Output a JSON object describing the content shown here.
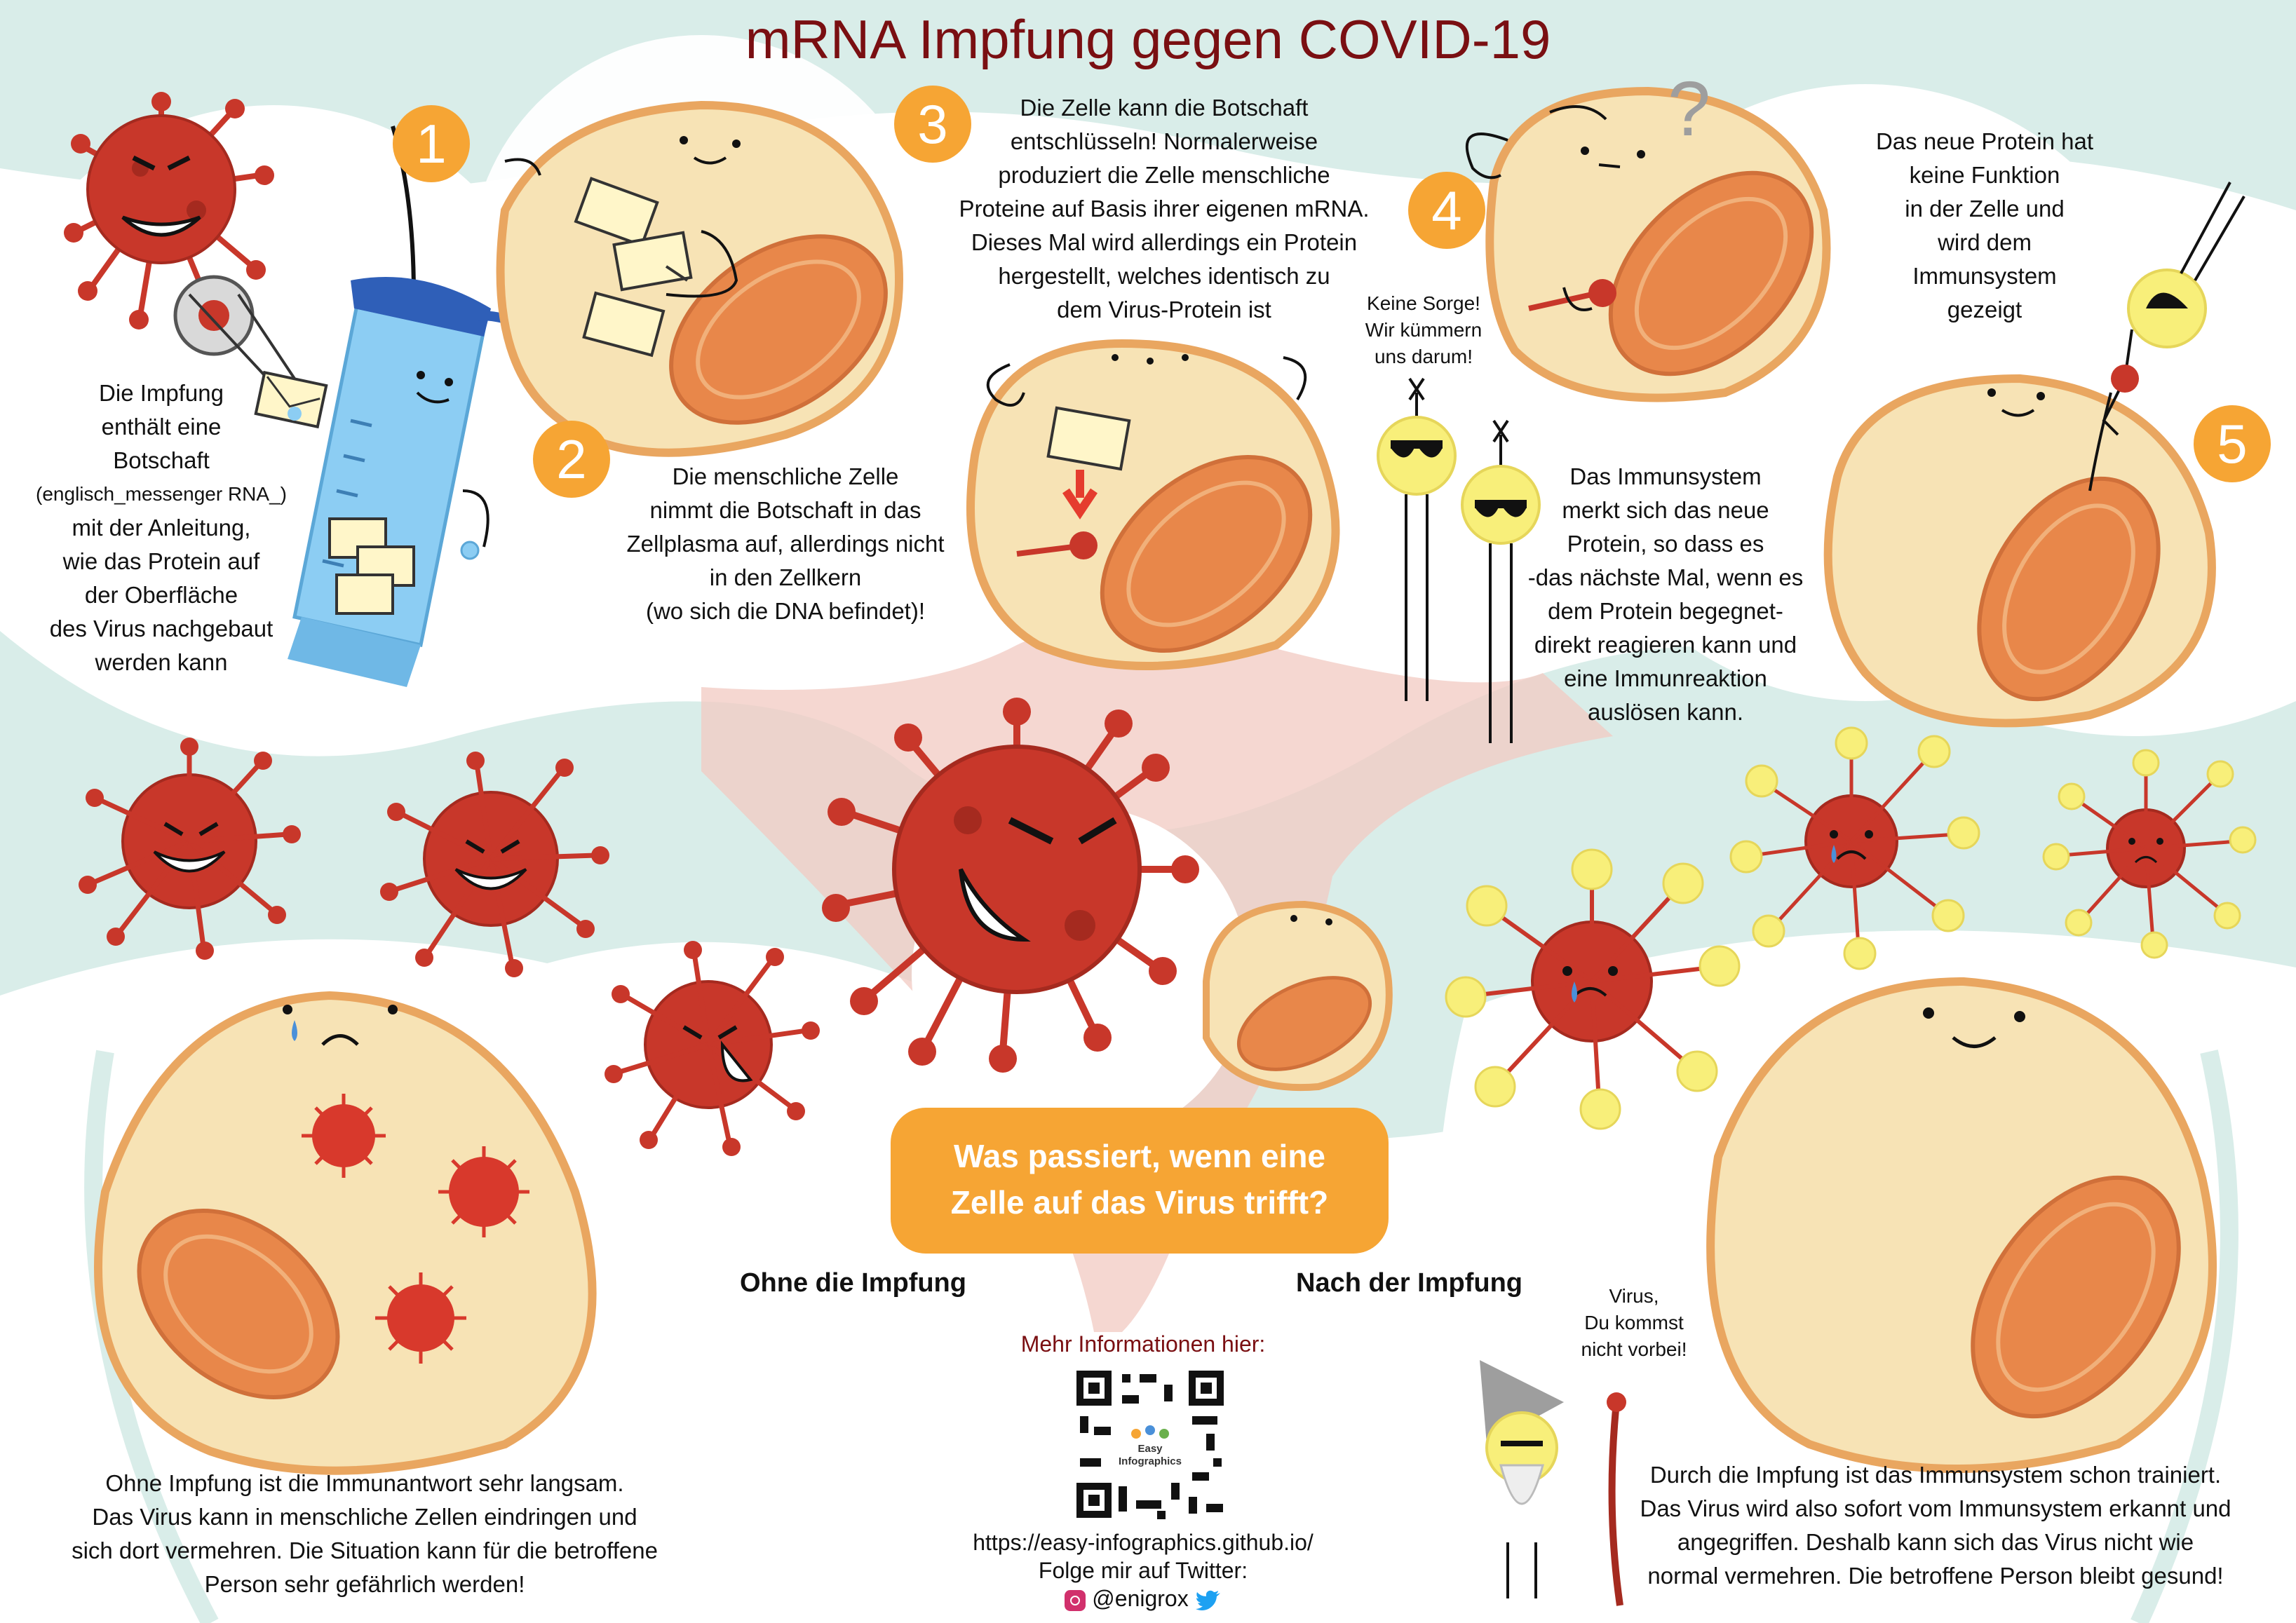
{
  "title": "mRNA Impfung gegen COVID-19",
  "steps": [
    {
      "number": "1",
      "text": [
        "Die Impfung",
        "enthält eine",
        "Botschaft",
        "(englisch_messenger RNA_)",
        "mit der Anleitung,",
        "wie das Protein auf",
        "der Oberfläche",
        "des Virus nachgebaut",
        "werden kann"
      ]
    },
    {
      "number": "2",
      "text": [
        "Die menschliche Zelle",
        "nimmt die Botschaft in das",
        "Zellplasma auf, allerdings nicht",
        "in den Zellkern",
        "(wo sich die DNA befindet)!"
      ]
    },
    {
      "number": "3",
      "text": [
        "Die Zelle kann die Botschaft",
        "entschlüsseln! Normalerweise",
        "produziert die Zelle menschliche",
        "Proteine auf Basis ihrer eigenen mRNA.",
        "Dieses Mal wird allerdings ein Protein",
        "hergestellt, welches identisch zu",
        "dem Virus-Protein ist"
      ]
    },
    {
      "number": "4",
      "text": [
        "Das Immunsystem",
        "merkt sich das neue",
        "Protein, so dass es",
        "-das nächste Mal, wenn es",
        "dem Protein begegnet-",
        "direkt reagieren kann und",
        "eine Immunreaktion",
        "auslösen kann."
      ]
    },
    {
      "number": "5",
      "text": [
        "Das neue Protein hat",
        "keine Funktion",
        "in der Zelle und",
        "wird dem",
        "Immunsystem",
        "gezeigt"
      ]
    }
  ],
  "speech": {
    "keine_sorge": [
      "Keine Sorge!",
      "Wir kümmern",
      "uns darum!"
    ],
    "virus_du_kommst": [
      "Virus,",
      "Du kommst",
      "nicht vorbei!"
    ]
  },
  "question_mark": "?",
  "question": [
    "Was passiert, wenn eine",
    "Zelle auf das Virus trifft?"
  ],
  "labels": {
    "without": "Ohne die Impfung",
    "with": "Nach der Impfung"
  },
  "outcomes": {
    "without": [
      "Ohne Impfung ist die Immunantwort sehr langsam.",
      "Das Virus kann in menschliche Zellen eindringen und",
      "sich dort vermehren. Die Situation kann für die betroffene",
      "Person sehr gefährlich werden!"
    ],
    "with": [
      "Durch die Impfung ist das Immunsystem schon trainiert.",
      "Das Virus wird also sofort vom Immunsystem erkannt und",
      "angegriffen. Deshalb kann sich das Virus nicht wie",
      "normal vermehren. Die betroffene Person bleibt gesund!"
    ]
  },
  "info": {
    "title": "Mehr Informationen hier:",
    "qr_label": [
      "Easy",
      "Infographics"
    ],
    "url": "https://easy-infographics.github.io/",
    "twitter_label": "Folge mir auf Twitter:",
    "handle": "@enigrox"
  },
  "colors": {
    "title": "#7a0f12",
    "accent_orange": "#f6a534",
    "virus_red": "#c8372a",
    "cell_fill": "#f7e3b5",
    "cell_border": "#e9a660",
    "mitochondria": "#e8874a",
    "immune_yellow": "#f8ef7a",
    "background_teal": "#d9ede9",
    "background_pink": "#f1c9c1",
    "syringe_blue": "#8ccdf3",
    "cap_blue": "#2f5fb8"
  }
}
